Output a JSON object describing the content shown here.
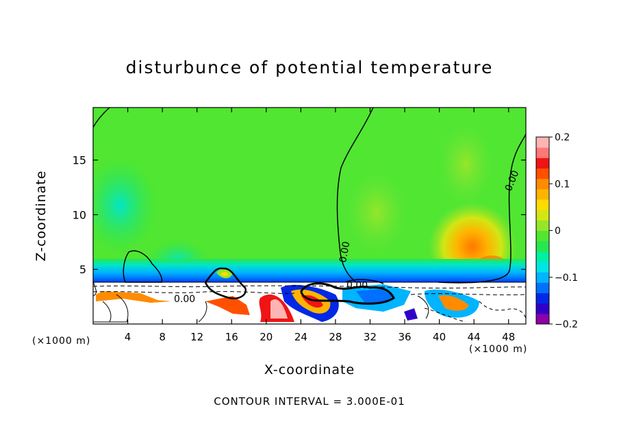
{
  "chart_data": {
    "type": "heatmap",
    "title": "disturbunce of potential temperature",
    "xlabel": "X-coordinate",
    "ylabel": "Z-coordinate",
    "x_units": "(×1000 m)",
    "y_units": "(×1000 m)",
    "xlim": [
      0,
      50
    ],
    "ylim": [
      0,
      19.8
    ],
    "x_ticks": [
      4,
      8,
      12,
      16,
      20,
      24,
      28,
      32,
      36,
      40,
      44,
      48
    ],
    "y_ticks": [
      5,
      10,
      15
    ],
    "colorbar": {
      "range": [
        -0.2,
        0.2
      ],
      "tick_values": [
        0.2,
        0.1,
        0,
        -0.1,
        -0.2
      ],
      "tick_labels": [
        "0.2",
        "0.1",
        "0",
        "−0.1",
        "−0.2"
      ],
      "colors": [
        "#8b00a8",
        "#3000c8",
        "#0028e6",
        "#0070ff",
        "#00b4ff",
        "#00e6e6",
        "#00f0a0",
        "#28e650",
        "#50e632",
        "#96e628",
        "#d2e614",
        "#ffdc00",
        "#ffb400",
        "#ff8c00",
        "#ff5000",
        "#f01414",
        "#ff7878",
        "#ffb4b4"
      ]
    },
    "contour_labels": [
      "0.00",
      "0.00",
      "0.00",
      "0.00"
    ],
    "footer": "CONTOUR INTERVAL = 3.000E-01"
  }
}
